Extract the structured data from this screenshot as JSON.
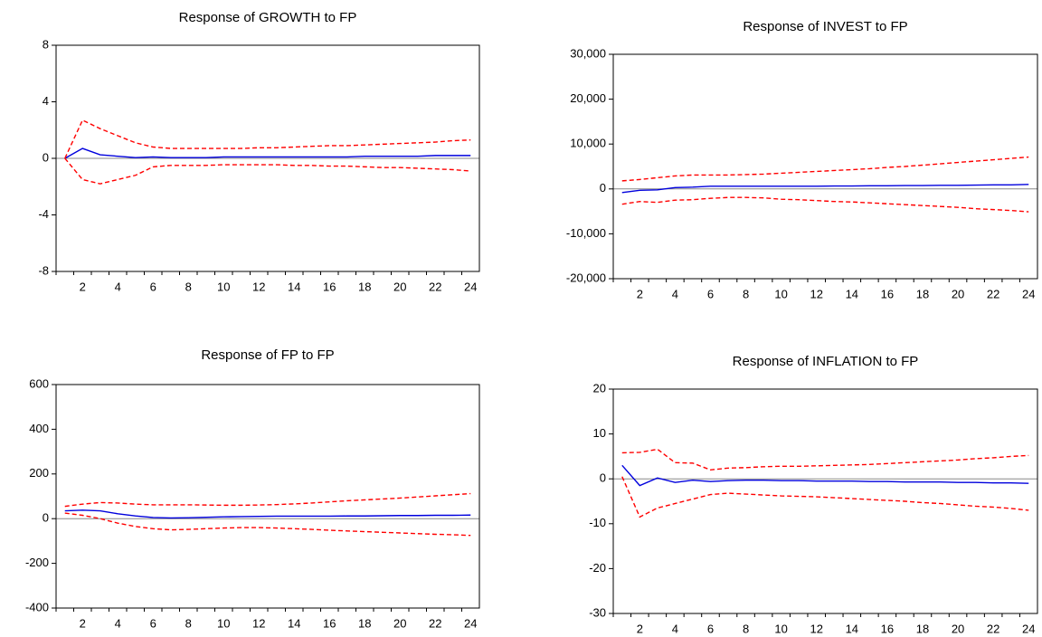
{
  "chart_data": [
    {
      "type": "line",
      "title": "Response of GROWTH to FP",
      "categories": [
        null,
        "2",
        null,
        "4",
        null,
        "6",
        null,
        "8",
        null,
        "10",
        null,
        "12",
        null,
        "14",
        null,
        "16",
        null,
        "18",
        null,
        "20",
        null,
        "22",
        null,
        "24"
      ],
      "ylim": [
        -8,
        8
      ],
      "yticks": [
        -8,
        -4,
        0,
        4,
        8
      ],
      "zero_line": true,
      "series": [
        {
          "color": "#0000dd",
          "style": "solid",
          "values": [
            0,
            0.7,
            0.25,
            0.15,
            0.05,
            0.1,
            0.05,
            0.05,
            0.05,
            0.1,
            0.1,
            0.1,
            0.1,
            0.1,
            0.1,
            0.1,
            0.1,
            0.15,
            0.15,
            0.15,
            0.15,
            0.2,
            0.2,
            0.2
          ]
        },
        {
          "color": "#ff0000",
          "style": "dashed",
          "values": [
            0,
            2.7,
            2.1,
            1.6,
            1.1,
            0.8,
            0.7,
            0.7,
            0.7,
            0.7,
            0.7,
            0.75,
            0.75,
            0.8,
            0.85,
            0.9,
            0.9,
            0.95,
            1.0,
            1.05,
            1.1,
            1.15,
            1.25,
            1.3
          ]
        },
        {
          "color": "#ff0000",
          "style": "dashed",
          "values": [
            0,
            -1.5,
            -1.8,
            -1.5,
            -1.2,
            -0.6,
            -0.5,
            -0.5,
            -0.5,
            -0.45,
            -0.45,
            -0.45,
            -0.45,
            -0.5,
            -0.5,
            -0.55,
            -0.55,
            -0.6,
            -0.65,
            -0.65,
            -0.7,
            -0.75,
            -0.8,
            -0.9
          ]
        }
      ]
    },
    {
      "type": "line",
      "title": "Response of INVEST to FP",
      "categories": [
        null,
        "2",
        null,
        "4",
        null,
        "6",
        null,
        "8",
        null,
        "10",
        null,
        "12",
        null,
        "14",
        null,
        "16",
        null,
        "18",
        null,
        "20",
        null,
        "22",
        null,
        "24"
      ],
      "ylim": [
        -20000,
        30000
      ],
      "yticks": [
        {
          "value": -20000,
          "label": "-20,000"
        },
        {
          "value": -10000,
          "label": "-10,000"
        },
        0,
        {
          "value": 10000,
          "label": "10,000"
        },
        {
          "value": 20000,
          "label": "20,000"
        },
        {
          "value": 30000,
          "label": "30,000"
        }
      ],
      "zero_line": true,
      "series": [
        {
          "color": "#0000dd",
          "style": "solid",
          "values": [
            -800,
            -300,
            -200,
            300,
            400,
            600,
            600,
            600,
            600,
            600,
            600,
            600,
            650,
            650,
            700,
            700,
            750,
            750,
            800,
            800,
            850,
            900,
            900,
            1000
          ]
        },
        {
          "color": "#ff0000",
          "style": "dashed",
          "values": [
            1800,
            2100,
            2500,
            2900,
            3100,
            3100,
            3100,
            3200,
            3300,
            3500,
            3700,
            3900,
            4100,
            4300,
            4500,
            4800,
            5000,
            5300,
            5600,
            5900,
            6200,
            6500,
            6800,
            7100
          ]
        },
        {
          "color": "#ff0000",
          "style": "dashed",
          "values": [
            -3400,
            -2800,
            -3000,
            -2500,
            -2400,
            -2100,
            -1900,
            -1900,
            -2000,
            -2300,
            -2400,
            -2600,
            -2800,
            -2900,
            -3100,
            -3300,
            -3500,
            -3700,
            -3900,
            -4100,
            -4400,
            -4600,
            -4800,
            -5100
          ]
        }
      ]
    },
    {
      "type": "line",
      "title": "Response of FP to FP",
      "categories": [
        null,
        "2",
        null,
        "4",
        null,
        "6",
        null,
        "8",
        null,
        "10",
        null,
        "12",
        null,
        "14",
        null,
        "16",
        null,
        "18",
        null,
        "20",
        null,
        "22",
        null,
        "24"
      ],
      "ylim": [
        -400,
        600
      ],
      "yticks": [
        -400,
        -200,
        0,
        200,
        400,
        600
      ],
      "zero_line": true,
      "series": [
        {
          "color": "#0000dd",
          "style": "solid",
          "values": [
            35,
            38,
            35,
            22,
            12,
            5,
            3,
            4,
            6,
            8,
            9,
            10,
            11,
            11,
            11,
            11,
            12,
            12,
            13,
            14,
            14,
            15,
            15,
            16
          ]
        },
        {
          "color": "#ff0000",
          "style": "dashed",
          "values": [
            55,
            65,
            72,
            70,
            65,
            62,
            62,
            62,
            61,
            60,
            60,
            61,
            63,
            66,
            70,
            75,
            80,
            84,
            88,
            92,
            97,
            102,
            107,
            112
          ]
        },
        {
          "color": "#ff0000",
          "style": "dashed",
          "values": [
            25,
            15,
            0,
            -20,
            -35,
            -45,
            -50,
            -48,
            -45,
            -42,
            -40,
            -40,
            -42,
            -45,
            -48,
            -52,
            -55,
            -58,
            -61,
            -64,
            -67,
            -70,
            -72,
            -75
          ]
        }
      ]
    },
    {
      "type": "line",
      "title": "Response of INFLATION to FP",
      "categories": [
        null,
        "2",
        null,
        "4",
        null,
        "6",
        null,
        "8",
        null,
        "10",
        null,
        "12",
        null,
        "14",
        null,
        "16",
        null,
        "18",
        null,
        "20",
        null,
        "22",
        null,
        "24"
      ],
      "ylim": [
        -30,
        20
      ],
      "yticks": [
        -30,
        -20,
        -10,
        0,
        10,
        20
      ],
      "zero_line": true,
      "series": [
        {
          "color": "#0000dd",
          "style": "solid",
          "values": [
            3,
            -1.5,
            0.2,
            -0.8,
            -0.3,
            -0.6,
            -0.4,
            -0.3,
            -0.3,
            -0.4,
            -0.4,
            -0.5,
            -0.5,
            -0.5,
            -0.6,
            -0.6,
            -0.7,
            -0.7,
            -0.7,
            -0.8,
            -0.8,
            -0.9,
            -0.9,
            -1.0
          ]
        },
        {
          "color": "#ff0000",
          "style": "dashed",
          "values": [
            5.8,
            5.9,
            6.6,
            3.6,
            3.5,
            2.0,
            2.4,
            2.5,
            2.7,
            2.8,
            2.8,
            2.9,
            3.0,
            3.1,
            3.2,
            3.4,
            3.6,
            3.8,
            4.0,
            4.2,
            4.5,
            4.7,
            5.0,
            5.2
          ]
        },
        {
          "color": "#ff0000",
          "style": "dashed",
          "values": [
            0.5,
            -8.5,
            -6.5,
            -5.5,
            -4.5,
            -3.5,
            -3.2,
            -3.4,
            -3.6,
            -3.8,
            -3.9,
            -4.0,
            -4.2,
            -4.4,
            -4.6,
            -4.8,
            -5.0,
            -5.3,
            -5.5,
            -5.8,
            -6.1,
            -6.3,
            -6.6,
            -7.0
          ]
        }
      ]
    }
  ]
}
